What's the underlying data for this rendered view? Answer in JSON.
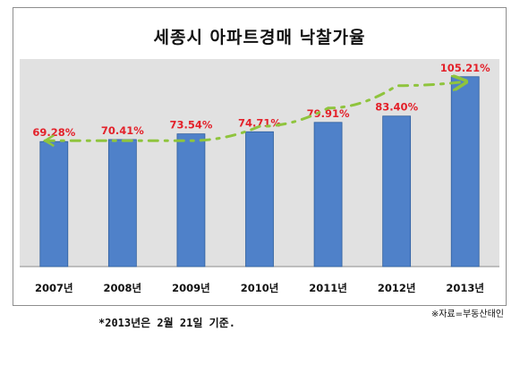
{
  "chart_data": {
    "type": "bar",
    "title": "세종시 아파트경매 낙찰가율",
    "categories": [
      "2007년",
      "2008년",
      "2009년",
      "2010년",
      "2011년",
      "2012년",
      "2013년"
    ],
    "values": [
      69.28,
      70.41,
      73.54,
      74.71,
      79.91,
      83.4,
      105.21
    ],
    "data_labels": [
      "69.28%",
      "70.41%",
      "73.54%",
      "74.71%",
      "79.91%",
      "83.40%",
      "105.21%"
    ],
    "xlabel": "",
    "ylabel": "",
    "ylim": [
      0,
      115
    ],
    "grid": false,
    "trend_arrow": true,
    "colors": {
      "bar": "#4f81c9",
      "bar_edge": "#2f5f9e",
      "plot_background": "#e1e1e1",
      "label": "#e3212a",
      "trend": "#8fc43d"
    }
  },
  "source_note": "※자료=부동산태인",
  "footnote": "*2013년은 2월 21일 기준."
}
